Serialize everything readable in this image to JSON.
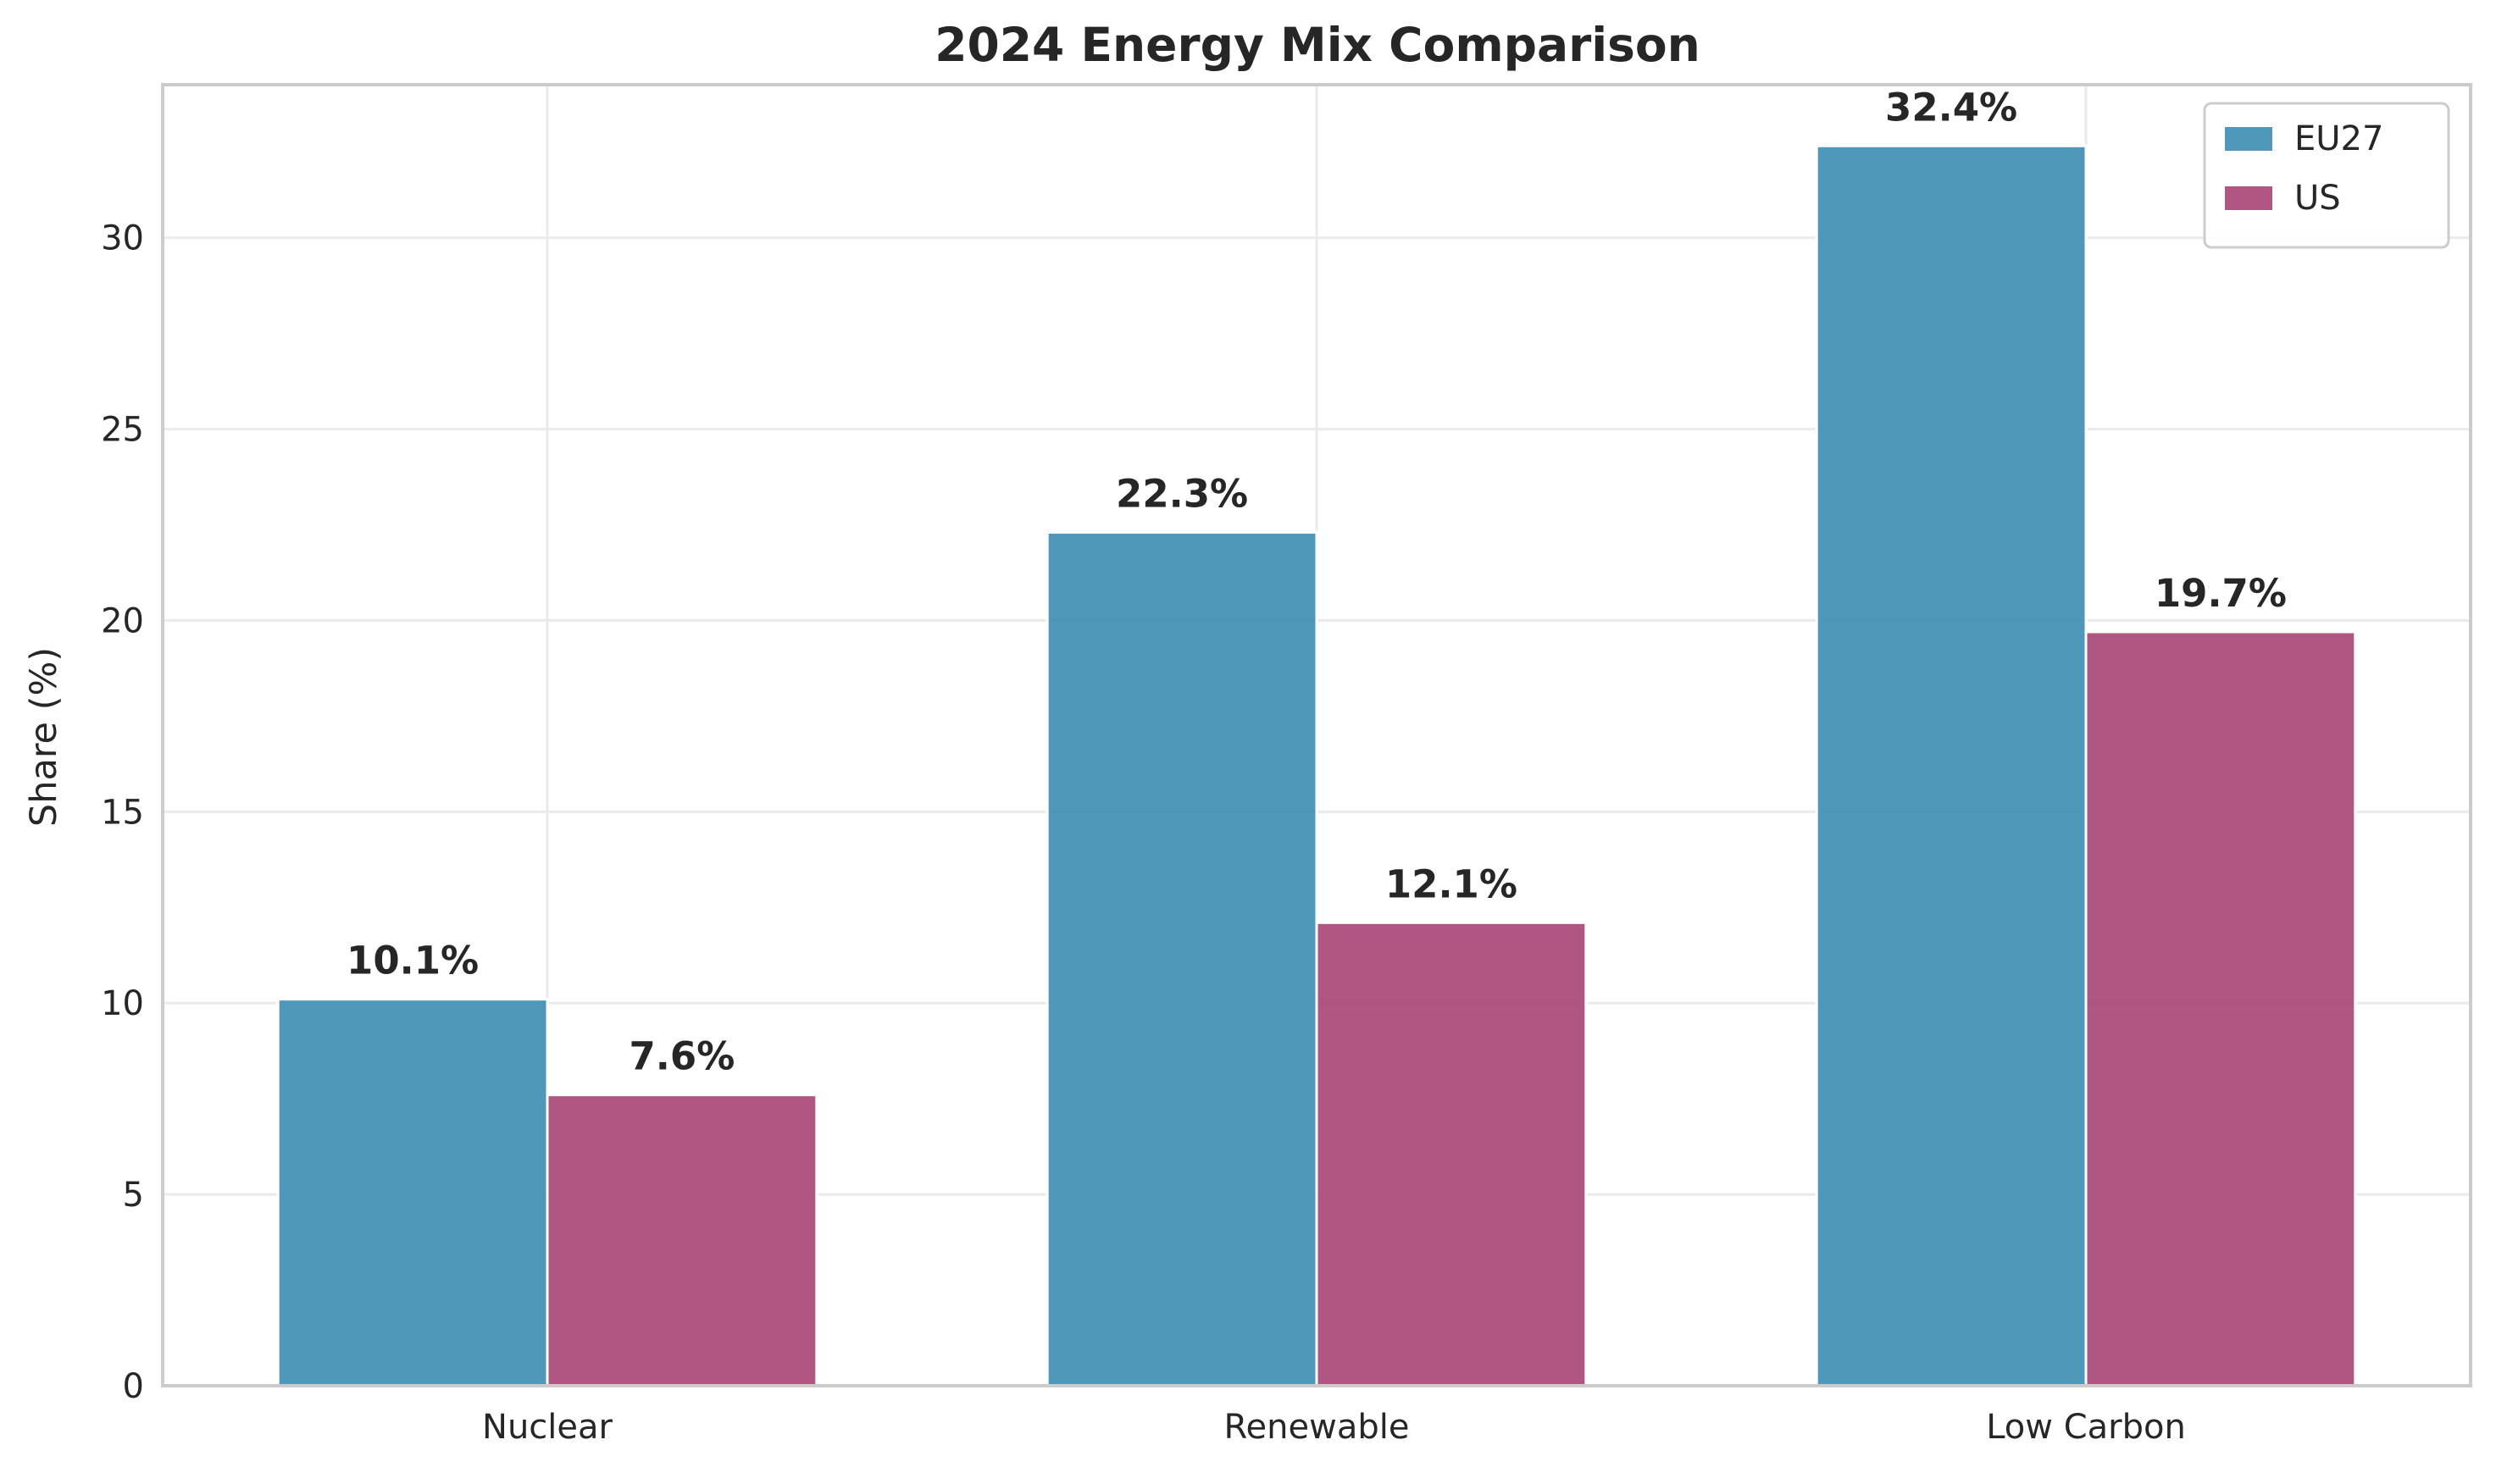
{
  "chart_data": {
    "type": "bar",
    "title": "2024 Energy Mix Comparison",
    "xlabel": "",
    "ylabel": "Share (%)",
    "categories": [
      "Nuclear",
      "Renewable",
      "Low Carbon"
    ],
    "series": [
      {
        "name": "EU27",
        "color": "#3d8db2",
        "values": [
          10.1,
          22.3,
          32.4
        ],
        "labels": [
          "10.1%",
          "22.3%",
          "32.4%"
        ]
      },
      {
        "name": "US",
        "color": "#a84376",
        "values": [
          7.6,
          12.1,
          19.7
        ],
        "labels": [
          "7.6%",
          "12.1%",
          "19.7%"
        ]
      }
    ],
    "ylim": [
      0,
      34
    ],
    "yticks": [
      0,
      5,
      10,
      15,
      20,
      25,
      30
    ],
    "grid": true,
    "legend_position": "top-right"
  }
}
